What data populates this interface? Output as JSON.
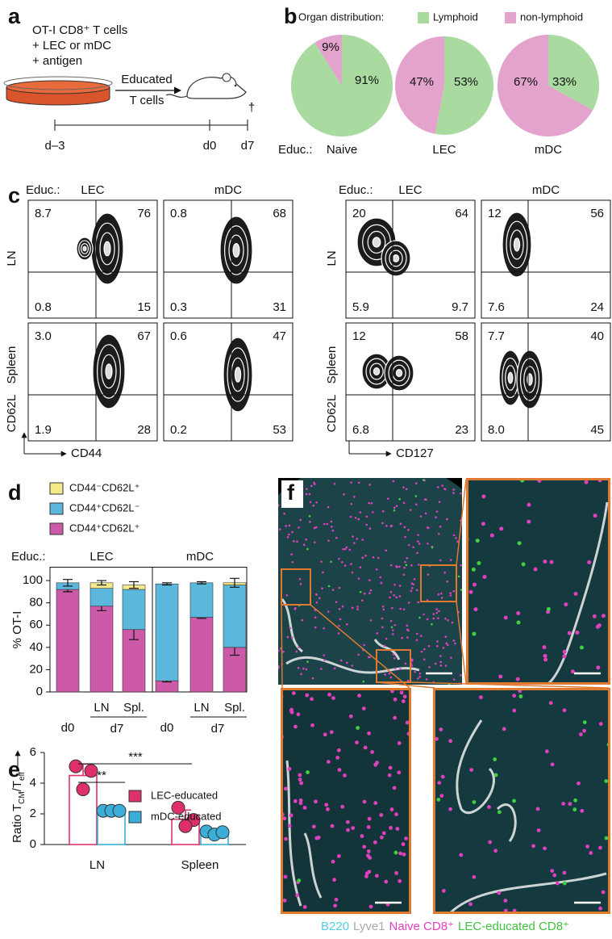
{
  "panel_labels": [
    "a",
    "b",
    "c",
    "d",
    "e",
    "f"
  ],
  "schematic": {
    "lines": [
      "OT-I CD8⁺ T cells",
      "+ LEC or mDC",
      "+ antigen"
    ],
    "arrow_label": [
      "Educated",
      "T cells"
    ],
    "death_mark": "†",
    "timepoints": [
      "d–3",
      "d0",
      "d7"
    ]
  },
  "flow_cytometry": {
    "educ_label": "Educ.:",
    "columns": [
      "LEC",
      "mDC"
    ],
    "rows": [
      "LN",
      "Spleen"
    ],
    "plots": [
      {
        "x_label": "CD44",
        "y_label": "CD62L",
        "quadrants": [
          [
            [
              "8.7",
              "76",
              "0.8",
              "15"
            ],
            [
              "0.8",
              "68",
              "0.3",
              "31"
            ]
          ],
          [
            [
              "3.0",
              "67",
              "1.9",
              "28"
            ],
            [
              "0.6",
              "47",
              "0.2",
              "53"
            ]
          ]
        ]
      },
      {
        "x_label": "CD127",
        "y_label": "CD62L",
        "quadrants": [
          [
            [
              "20",
              "64",
              "5.9",
              "9.7"
            ],
            [
              "12",
              "56",
              "7.6",
              "24"
            ]
          ],
          [
            [
              "12",
              "58",
              "6.8",
              "23"
            ],
            [
              "7.7",
              "40",
              "8.0",
              "45"
            ]
          ]
        ]
      }
    ]
  },
  "imaging": {
    "legend": [
      "B220",
      "Lyve1",
      "Naive CD8⁺",
      "LEC-educated CD8⁺"
    ]
  },
  "chart_data": [
    {
      "type": "pie",
      "legend_title": "Organ distribution:",
      "categories": [
        "Lymphoid",
        "non-lymphoid"
      ],
      "colors": [
        "#a9dba0",
        "#e3a3cc"
      ],
      "group_label": "Educ.:",
      "pies": [
        {
          "name": "Naive",
          "values": [
            91,
            9
          ],
          "value_labels": [
            "91%",
            "9%"
          ]
        },
        {
          "name": "LEC",
          "values": [
            53,
            47
          ],
          "value_labels": [
            "53%",
            "47%"
          ]
        },
        {
          "name": "mDC",
          "values": [
            33,
            67
          ],
          "value_labels": [
            "33%",
            "67%"
          ]
        }
      ]
    },
    {
      "type": "bar",
      "stacked": true,
      "y_label": "% OT-I",
      "group_label": "Educ.:",
      "groups": [
        "LEC",
        "mDC"
      ],
      "categories": [
        "d0",
        "LN",
        "Spl.",
        "d0",
        "LN",
        "Spl."
      ],
      "subgroup_label": "d7",
      "ylim": [
        0,
        112
      ],
      "yticks": [
        0,
        20,
        40,
        60,
        80,
        100
      ],
      "series": [
        {
          "name": "CD44⁺CD62L⁺",
          "color": "#cc5aa8",
          "values": [
            92,
            77,
            56,
            10,
            67,
            40
          ],
          "errors": [
            2,
            4,
            9,
            1,
            1,
            7
          ]
        },
        {
          "name": "CD44⁺CD62L⁻",
          "color": "#5bb8dc",
          "values": [
            6,
            16,
            36,
            87,
            31,
            56
          ]
        },
        {
          "name": "CD44⁻CD62L⁺",
          "color": "#f5e98a",
          "values": [
            0,
            5,
            4,
            0,
            0,
            2
          ],
          "errors": [
            3,
            2,
            3,
            1,
            1,
            4
          ]
        }
      ]
    },
    {
      "type": "bar",
      "y_label": [
        "Ratio T",
        "CM",
        "/T",
        "eff"
      ],
      "categories": [
        "LN",
        "Spleen"
      ],
      "ylim": [
        0,
        6
      ],
      "yticks": [
        0,
        2,
        4,
        6
      ],
      "series": [
        {
          "name": "LEC-educated",
          "color": "#e0306a",
          "values": [
            4.5,
            1.65
          ],
          "errors": [
            0.75,
            0.6
          ],
          "points": [
            [
              5.1,
              4.8,
              3.6
            ],
            [
              2.4,
              1.6,
              1.2
            ]
          ]
        },
        {
          "name": "mDC-educated",
          "color": "#3aaed8",
          "values": [
            2.18,
            0.77
          ],
          "errors": [
            0.08,
            0.15
          ],
          "points": [
            [
              2.2,
              2.2,
              2.2
            ],
            [
              0.85,
              0.65,
              0.8
            ]
          ]
        }
      ],
      "annotations": [
        "**",
        "***"
      ]
    }
  ]
}
